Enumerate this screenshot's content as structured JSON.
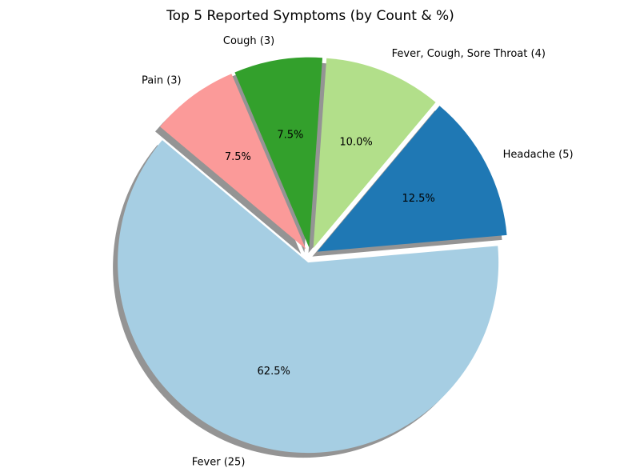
{
  "chart_data": {
    "type": "pie",
    "title": "Top 5 Reported Symptoms (by Count & %)",
    "slices": [
      {
        "label": "Fever (25)",
        "category": "Fever",
        "value": 25,
        "percent": "62.5%",
        "color": "#a6cee3"
      },
      {
        "label": "Headache (5)",
        "category": "Headache",
        "value": 5,
        "percent": "12.5%",
        "color": "#1f78b4"
      },
      {
        "label": "Fever, Cough, Sore Throat (4)",
        "category": "Fever, Cough, Sore Throat",
        "value": 4,
        "percent": "10.0%",
        "color": "#b2df8a"
      },
      {
        "label": "Cough (3)",
        "category": "Cough",
        "value": 3,
        "percent": "7.5%",
        "color": "#33a02c"
      },
      {
        "label": "Pain (3)",
        "category": "Pain",
        "value": 3,
        "percent": "7.5%",
        "color": "#fb9a99"
      }
    ],
    "shadow": true,
    "exploded": true
  }
}
